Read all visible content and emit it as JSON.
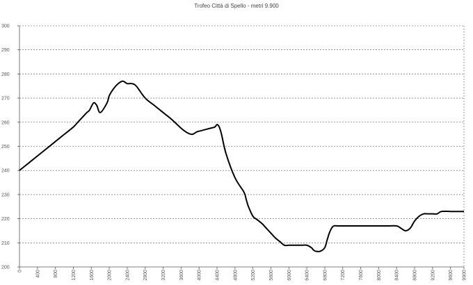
{
  "chart_data": {
    "type": "line",
    "title": "Trofeo Città di Spello - metri 9.900",
    "xlabel": "",
    "ylabel": "",
    "xlim": [
      0,
      9900
    ],
    "ylim": [
      200,
      300
    ],
    "x_ticks": [
      0,
      400,
      800,
      1200,
      1600,
      2000,
      2400,
      2800,
      3200,
      3600,
      4000,
      4400,
      4800,
      5200,
      5600,
      6000,
      6400,
      6800,
      7200,
      7600,
      8000,
      8400,
      8800,
      9200,
      9600,
      9900
    ],
    "x_tick_labels": [
      "0",
      "400",
      "800",
      "1200",
      "1600",
      "2000",
      "2400",
      "2800",
      "3200",
      "3600",
      "4000",
      "4400",
      "4800",
      "5200",
      "5600",
      "6000",
      "6400",
      "6800",
      "7200",
      "7600",
      "8000",
      "8400",
      "8800",
      "9200",
      "9600",
      "9900"
    ],
    "y_ticks": [
      200,
      210,
      220,
      230,
      240,
      250,
      260,
      270,
      280,
      290,
      300
    ],
    "grid": true,
    "legend": "none",
    "series": [
      {
        "color": "#000000",
        "x": [
          0,
          200,
          400,
          600,
          800,
          1000,
          1200,
          1300,
          1400,
          1500,
          1560,
          1650,
          1720,
          1800,
          1950,
          2000,
          2100,
          2200,
          2300,
          2400,
          2500,
          2600,
          2800,
          3000,
          3200,
          3400,
          3600,
          3750,
          3850,
          3950,
          4050,
          4150,
          4250,
          4350,
          4400,
          4450,
          4500,
          4600,
          4800,
          5000,
          5050,
          5100,
          5200,
          5300,
          5400,
          5500,
          5600,
          5700,
          5800,
          5900,
          6000,
          6100,
          6200,
          6300,
          6400,
          6500,
          6550,
          6600,
          6700,
          6800,
          6850,
          6900,
          6950,
          7000,
          7100,
          7200,
          7300,
          7400,
          7600,
          7800,
          8000,
          8200,
          8400,
          8500,
          8600,
          8700,
          8800,
          8900,
          9000,
          9100,
          9200,
          9300,
          9400,
          9600,
          9800,
          9900
        ],
        "values": [
          240,
          243,
          246,
          249,
          252,
          255,
          258,
          260,
          262,
          264,
          265,
          268,
          267,
          264,
          268,
          271,
          274,
          276,
          277,
          276,
          276,
          275,
          270,
          267,
          264,
          261,
          257.5,
          255.5,
          255,
          256,
          256.5,
          257,
          257.5,
          258,
          259,
          258,
          255,
          247,
          237,
          231,
          228,
          225,
          221,
          219.5,
          218,
          216,
          214,
          212,
          210.5,
          209,
          209,
          209,
          209,
          209,
          209,
          208,
          207,
          206.5,
          206.5,
          208,
          211,
          214,
          216,
          217,
          217,
          217,
          217,
          217,
          217,
          217,
          217,
          217,
          217,
          216,
          215,
          216,
          219,
          221,
          222,
          222,
          222,
          222,
          223,
          223,
          223,
          223
        ]
      }
    ]
  }
}
